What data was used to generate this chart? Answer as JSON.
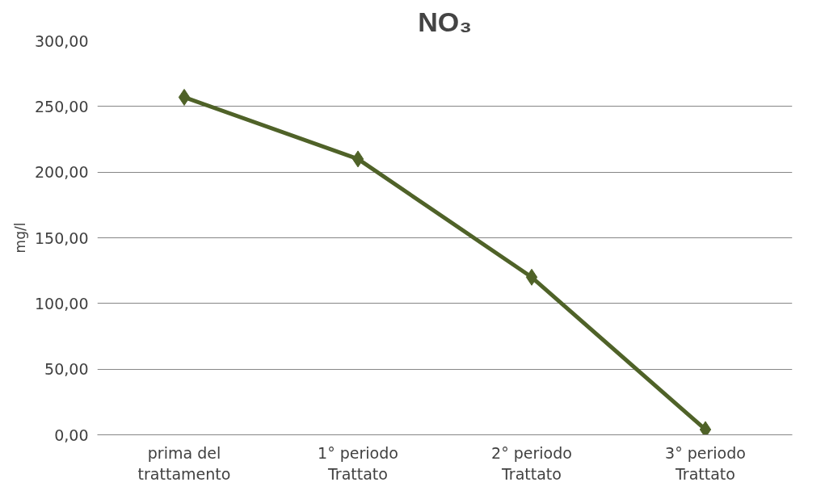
{
  "chart_data": {
    "type": "line",
    "title": "NO₃",
    "ylabel": "mg/l",
    "categories": [
      "prima del\ntrattamento",
      "1° periodo\nTrattato",
      "2° periodo\nTrattato",
      "3° periodo\nTrattato"
    ],
    "series": [
      {
        "color": "#4f6228",
        "values": [
          257,
          210,
          120,
          4
        ]
      }
    ],
    "ylim": [
      0,
      300
    ],
    "yticks": [
      {
        "value": 0,
        "label": "0,00"
      },
      {
        "value": 50,
        "label": "50,00"
      },
      {
        "value": 100,
        "label": "100,00"
      },
      {
        "value": 150,
        "label": "150,00"
      },
      {
        "value": 200,
        "label": "200,00"
      },
      {
        "value": 250,
        "label": "250,00"
      },
      {
        "value": 300,
        "label": "300,00"
      }
    ],
    "grid": "y",
    "marker": "diamond",
    "line_style": "solid"
  }
}
